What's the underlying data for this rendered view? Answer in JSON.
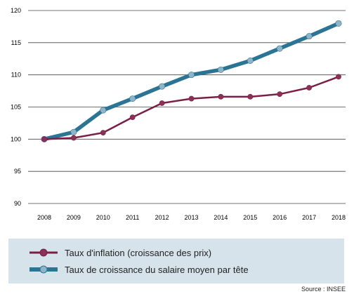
{
  "chart_data": {
    "type": "line",
    "x": [
      2008,
      2009,
      2010,
      2011,
      2012,
      2013,
      2014,
      2015,
      2016,
      2017,
      2018
    ],
    "x_tick_labels": [
      "2008",
      "2009",
      "2010",
      "2011",
      "2012",
      "2013",
      "2014",
      "2015",
      "2016",
      "2017",
      "2018"
    ],
    "y_tick_labels": [
      "90",
      "95",
      "100",
      "105",
      "110",
      "115",
      "120"
    ],
    "ylim": [
      90,
      120
    ],
    "grid": true,
    "legend_placement": "bottom",
    "series": [
      {
        "name": "Taux d'inflation (croissance des prix)",
        "color": "#7a1f45",
        "marker_color": "#8e2f58",
        "values": [
          100.0,
          100.2,
          101.0,
          103.4,
          105.6,
          106.3,
          106.6,
          106.6,
          107.0,
          108.0,
          109.7
        ]
      },
      {
        "name": "Taux de croissance du salaire moyen par tête",
        "color": "#2a7596",
        "marker_color": "#8fb4c7",
        "values": [
          100.0,
          101.1,
          104.5,
          106.3,
          108.2,
          110.0,
          110.8,
          112.2,
          114.1,
          116.0,
          118.0
        ]
      }
    ]
  },
  "source": "Source : INSEE"
}
